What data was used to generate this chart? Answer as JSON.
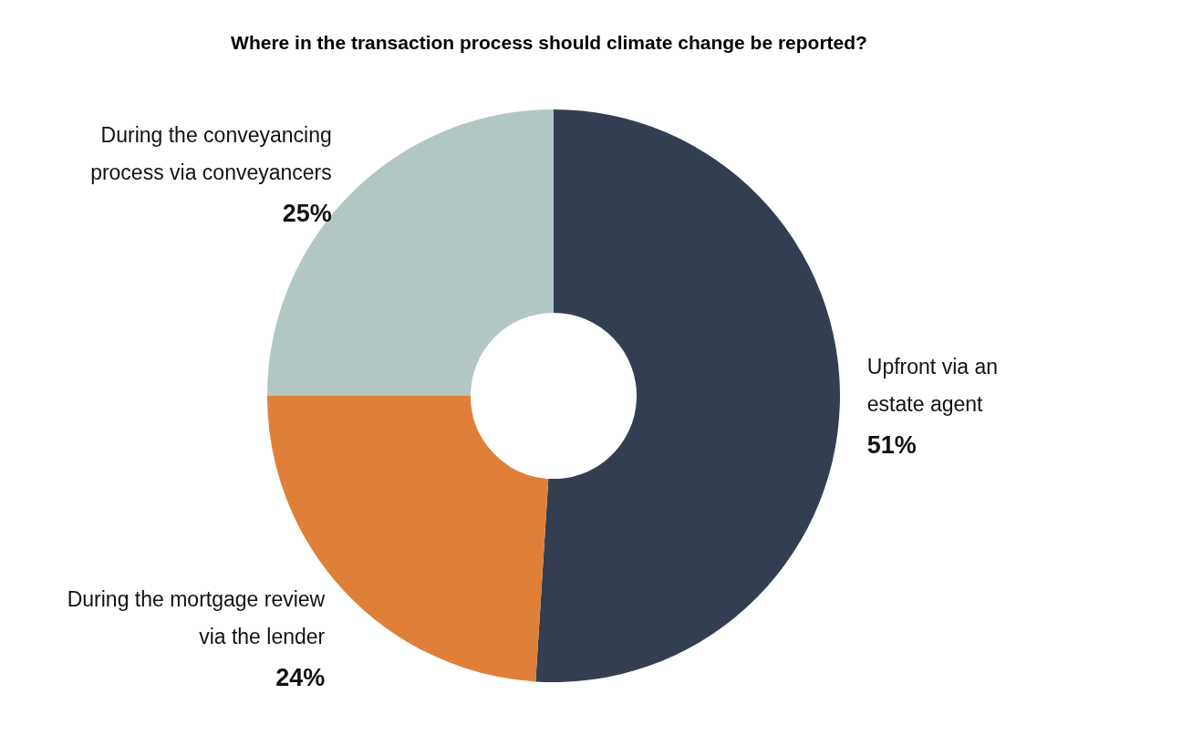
{
  "chart_data": {
    "type": "donut",
    "title": "Where in the transaction process should climate change be reported?",
    "categories": [
      "Upfront via an estate agent",
      "During the mortgage review via the lender",
      "During the conveyancing process via conveyancers"
    ],
    "values": [
      51,
      24,
      25
    ],
    "colors": [
      "#333f50",
      "#e07f37",
      "#b2c7c4"
    ],
    "value_labels": [
      "51%",
      "24%",
      "25%"
    ]
  }
}
